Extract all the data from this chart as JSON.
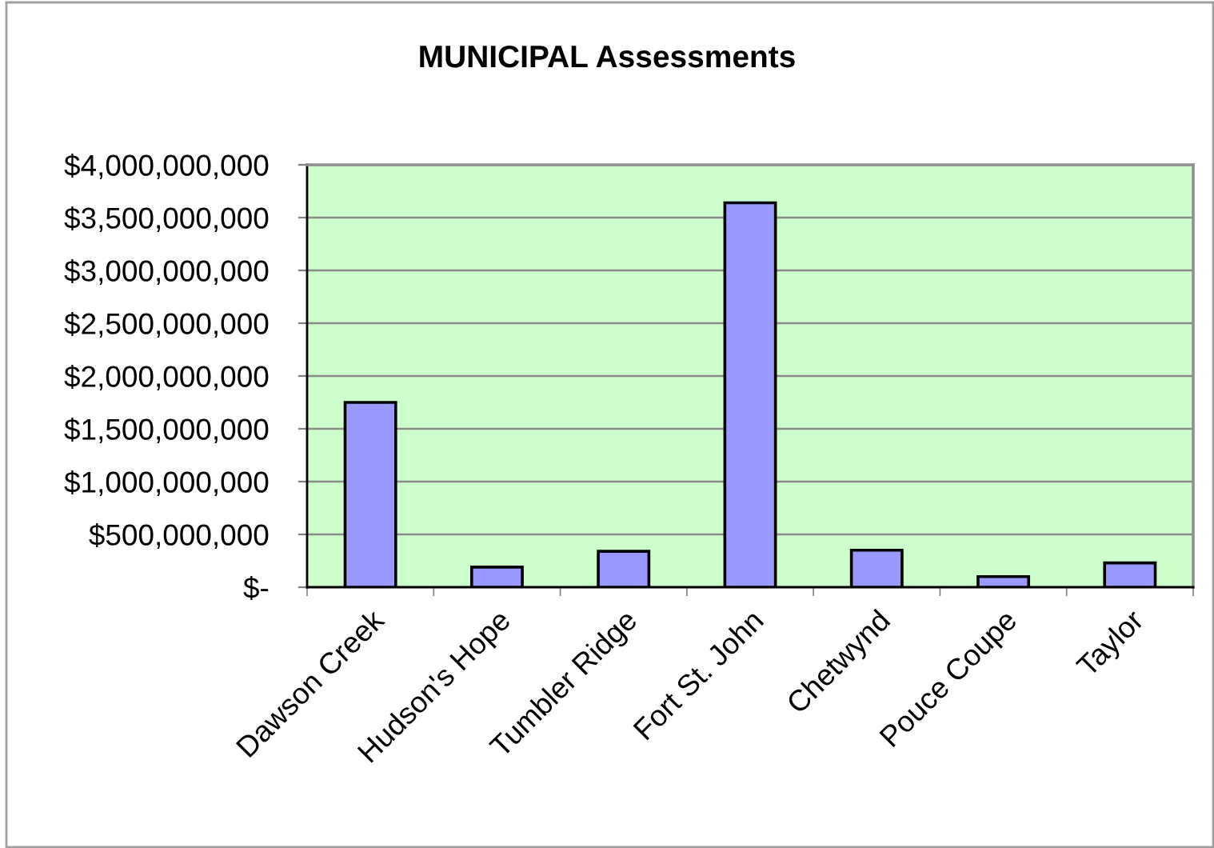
{
  "chart_data": {
    "type": "bar",
    "title": "MUNICIPAL Assessments",
    "categories": [
      "Dawson Creek",
      "Hudson's Hope",
      "Tumbler Ridge",
      "Fort St. John",
      "Chetwynd",
      "Pouce Coupe",
      "Taylor"
    ],
    "values": [
      1750000000,
      190000000,
      340000000,
      3640000000,
      350000000,
      100000000,
      230000000
    ],
    "color": "#9999ff",
    "ylim": [
      0,
      4000000000
    ],
    "yticks": [
      {
        "value": 0,
        "label": "$-"
      },
      {
        "value": 500000000,
        "label": "$500,000,000"
      },
      {
        "value": 1000000000,
        "label": "$1,000,000,000"
      },
      {
        "value": 1500000000,
        "label": "$1,500,000,000"
      },
      {
        "value": 2000000000,
        "label": "$2,000,000,000"
      },
      {
        "value": 2500000000,
        "label": "$2,500,000,000"
      },
      {
        "value": 3000000000,
        "label": "$3,000,000,000"
      },
      {
        "value": 3500000000,
        "label": "$3,500,000,000"
      },
      {
        "value": 4000000000,
        "label": "$4,000,000,000"
      }
    ],
    "grid": "y"
  }
}
